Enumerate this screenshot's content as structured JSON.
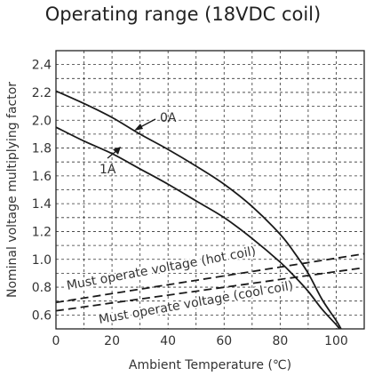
{
  "chart_data": {
    "type": "line",
    "title": "Operating range (18VDC coil)",
    "xlabel": "Ambient Temperature (℃)",
    "ylabel": "Nominal voltage multiplying factor",
    "xlim": [
      0,
      110
    ],
    "ylim": [
      0.5,
      2.5
    ],
    "xticks": [
      0,
      20,
      40,
      60,
      80,
      100
    ],
    "yticks": [
      0.6,
      0.8,
      1.0,
      1.2,
      1.4,
      1.6,
      1.8,
      2.0,
      2.2,
      2.4
    ],
    "x_grid_step": 10,
    "y_grid_step": 0.1,
    "grid": true,
    "series": [
      {
        "name": "0A",
        "style": "solid",
        "x": [
          0,
          10,
          20,
          30,
          40,
          50,
          60,
          70,
          80,
          85,
          90,
          95,
          100,
          102
        ],
        "y": [
          2.21,
          2.12,
          2.02,
          1.9,
          1.79,
          1.67,
          1.54,
          1.38,
          1.18,
          1.05,
          0.9,
          0.71,
          0.56,
          0.49
        ]
      },
      {
        "name": "1A",
        "style": "solid",
        "x": [
          0,
          10,
          20,
          30,
          40,
          50,
          60,
          70,
          80,
          85,
          90,
          95,
          100,
          101.5
        ],
        "y": [
          1.95,
          1.85,
          1.76,
          1.65,
          1.54,
          1.42,
          1.3,
          1.15,
          0.98,
          0.88,
          0.77,
          0.64,
          0.53,
          0.49
        ]
      },
      {
        "name": "Must operate voltage (hot coil)",
        "style": "dashed",
        "x": [
          0,
          110
        ],
        "y": [
          0.69,
          1.04
        ]
      },
      {
        "name": "Must operate voltage (cool coil)",
        "style": "dashed",
        "x": [
          0,
          110
        ],
        "y": [
          0.63,
          0.94
        ]
      }
    ],
    "annotations": [
      {
        "text": "0A",
        "series": "0A"
      },
      {
        "text": "1A",
        "series": "1A"
      },
      {
        "text": "Must operate voltage (hot coil)"
      },
      {
        "text": "Must operate voltage (cool coil)"
      }
    ]
  }
}
